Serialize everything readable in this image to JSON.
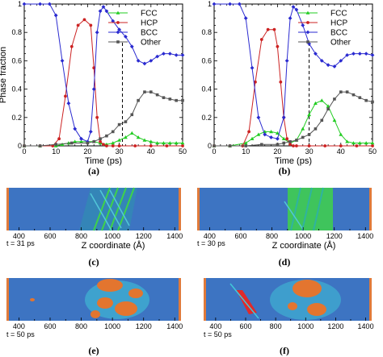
{
  "panel_labels": [
    "(a)",
    "(b)",
    "(c)",
    "(d)",
    "(e)",
    "(f)"
  ],
  "colors": {
    "FCC": "#22cc22",
    "HCP": "#cc2222",
    "BCC": "#2a2ad0",
    "Other": "#555555",
    "snapshot_bg": "#3d74c2",
    "cluster_green": "#3fd24a",
    "cluster_orange": "#e3752f",
    "cluster_red": "#e02a2a",
    "cluster_cyan": "#40c8d8",
    "edge_orange": "#e07a3a"
  },
  "chart_data": [
    {
      "type": "line",
      "panel": "(a)",
      "xlabel": "Time (ps)",
      "ylabel": "Phase fraction",
      "xlim": [
        0,
        50
      ],
      "ylim": [
        0,
        1
      ],
      "xticks": [
        "0",
        "10",
        "20",
        "30",
        "40",
        "50"
      ],
      "yticks": [
        "0",
        "0.2",
        "0.4",
        "0.6",
        "0.8",
        "1"
      ],
      "grid": false,
      "legend": "top-right",
      "vline_x": 31,
      "series": [
        {
          "name": "FCC",
          "x": [
            0,
            5,
            10,
            12,
            14,
            16,
            18,
            20,
            22,
            24,
            26,
            28,
            30,
            32,
            34,
            36,
            38,
            40,
            42,
            44,
            46,
            48,
            50
          ],
          "y": [
            0,
            0,
            0,
            0.01,
            0.02,
            0.03,
            0.03,
            0.03,
            0.03,
            0.02,
            0.01,
            0.02,
            0.04,
            0.06,
            0.09,
            0.06,
            0.04,
            0.03,
            0.02,
            0.02,
            0.02,
            0.02,
            0.02
          ]
        },
        {
          "name": "HCP",
          "x": [
            0,
            5,
            9,
            11,
            13,
            15,
            17,
            19,
            21,
            22,
            23,
            24,
            25,
            26,
            28,
            30,
            35,
            40,
            45,
            50
          ],
          "y": [
            0,
            0,
            0,
            0.05,
            0.35,
            0.7,
            0.85,
            0.89,
            0.85,
            0.55,
            0.2,
            0.03,
            0.01,
            0,
            0,
            0,
            0,
            0,
            0,
            0
          ],
          "markers": "filled"
        },
        {
          "name": "BCC",
          "x": [
            0,
            5,
            8,
            10,
            12,
            14,
            16,
            18,
            20,
            21,
            22,
            23,
            24,
            25,
            26,
            28,
            30,
            32,
            34,
            36,
            38,
            40,
            42,
            44,
            46,
            48,
            50
          ],
          "y": [
            1,
            1,
            1,
            0.92,
            0.6,
            0.3,
            0.12,
            0.05,
            0.03,
            0.1,
            0.4,
            0.8,
            0.95,
            0.98,
            0.95,
            0.88,
            0.82,
            0.77,
            0.7,
            0.6,
            0.58,
            0.6,
            0.63,
            0.65,
            0.65,
            0.64,
            0.64
          ]
        },
        {
          "name": "Other",
          "x": [
            0,
            5,
            10,
            15,
            20,
            22,
            24,
            26,
            28,
            30,
            32,
            34,
            36,
            38,
            40,
            42,
            44,
            46,
            48,
            50
          ],
          "y": [
            0,
            0,
            0.01,
            0.02,
            0.02,
            0.03,
            0.05,
            0.07,
            0.1,
            0.15,
            0.17,
            0.22,
            0.32,
            0.38,
            0.38,
            0.36,
            0.34,
            0.33,
            0.32,
            0.32
          ]
        }
      ]
    },
    {
      "type": "line",
      "panel": "(b)",
      "xlabel": "Time (ps)",
      "xlim": [
        0,
        50
      ],
      "ylim": [
        0,
        1
      ],
      "xticks": [
        "0",
        "10",
        "20",
        "30",
        "40",
        "50"
      ],
      "yticks": [
        "0",
        "0.2",
        "0.4",
        "0.6",
        "0.8",
        "1"
      ],
      "grid": false,
      "legend": "top-right",
      "vline_x": 30,
      "series": [
        {
          "name": "FCC",
          "x": [
            0,
            5,
            10,
            12,
            14,
            16,
            18,
            20,
            22,
            24,
            26,
            28,
            30,
            32,
            34,
            36,
            38,
            40,
            42,
            44,
            46,
            48,
            50
          ],
          "y": [
            0,
            0,
            0.02,
            0.05,
            0.08,
            0.1,
            0.1,
            0.09,
            0.05,
            0.02,
            0.04,
            0.12,
            0.22,
            0.3,
            0.32,
            0.28,
            0.18,
            0.08,
            0.03,
            0.02,
            0.02,
            0.02,
            0.02
          ]
        },
        {
          "name": "HCP",
          "x": [
            0,
            5,
            9,
            11,
            13,
            15,
            17,
            19,
            20,
            21,
            22,
            23,
            24,
            25,
            26,
            30,
            35,
            40,
            45,
            50
          ],
          "y": [
            0,
            0,
            0,
            0.1,
            0.45,
            0.75,
            0.82,
            0.82,
            0.7,
            0.45,
            0.2,
            0.05,
            0.01,
            0,
            0,
            0,
            0,
            0,
            0,
            0
          ]
        },
        {
          "name": "BCC",
          "x": [
            0,
            5,
            8,
            10,
            12,
            14,
            16,
            18,
            20,
            22,
            23,
            24,
            25,
            26,
            28,
            30,
            32,
            34,
            36,
            38,
            40,
            42,
            44,
            46,
            48,
            50
          ],
          "y": [
            1,
            1,
            1,
            0.9,
            0.55,
            0.2,
            0.08,
            0.06,
            0.05,
            0.2,
            0.6,
            0.9,
            0.98,
            0.96,
            0.85,
            0.72,
            0.65,
            0.6,
            0.57,
            0.56,
            0.6,
            0.64,
            0.65,
            0.65,
            0.65,
            0.64
          ]
        },
        {
          "name": "Other",
          "x": [
            0,
            5,
            10,
            15,
            20,
            22,
            24,
            26,
            28,
            30,
            32,
            34,
            36,
            38,
            40,
            42,
            44,
            46,
            48,
            50
          ],
          "y": [
            0,
            0,
            0,
            0.01,
            0.01,
            0.02,
            0.03,
            0.04,
            0.06,
            0.08,
            0.12,
            0.18,
            0.26,
            0.33,
            0.38,
            0.38,
            0.36,
            0.34,
            0.32,
            0.31
          ]
        }
      ]
    }
  ],
  "snapshots": [
    {
      "panel": "(c)",
      "time": "t = 31 ps",
      "xlabel": "Z coordinate (Å)",
      "ticks": [
        "400",
        "600",
        "800",
        "1000",
        "1200",
        "1400"
      ]
    },
    {
      "panel": "(d)",
      "time": "t = 30 ps",
      "xlabel": "Z coordinate (Å)",
      "ticks": [
        "400",
        "600",
        "800",
        "1000",
        "1200",
        "1400"
      ]
    },
    {
      "panel": "(e)",
      "time": "t = 50 ps",
      "ticks": [
        "400",
        "600",
        "800",
        "1000",
        "1200",
        "1400"
      ]
    },
    {
      "panel": "(f)",
      "time": "t = 50 ps",
      "ticks": [
        "400",
        "600",
        "800",
        "1000",
        "1200",
        "1400"
      ]
    }
  ]
}
